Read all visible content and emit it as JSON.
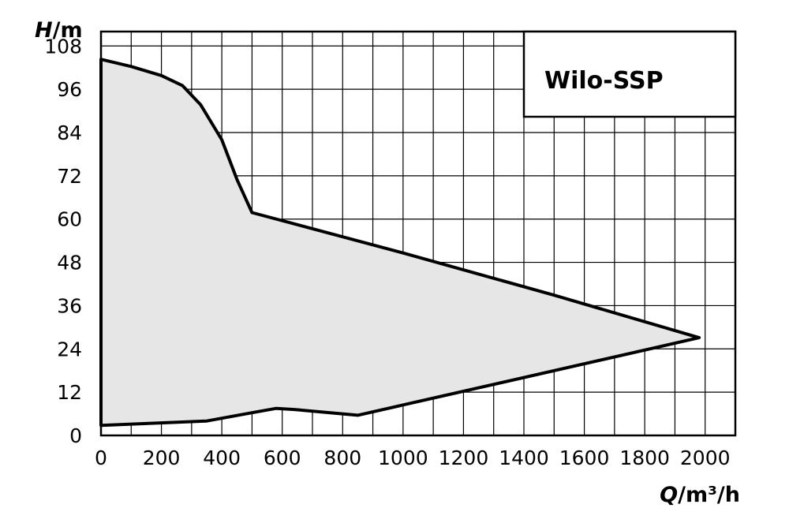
{
  "chart_data": {
    "type": "area",
    "title": "",
    "xlabel_var": "Q",
    "xlabel_unit": "/m³/h",
    "ylabel_var": "H",
    "ylabel_unit": "/m",
    "xlim": [
      0,
      2100
    ],
    "ylim": [
      0,
      112
    ],
    "x_ticks": [
      0,
      200,
      400,
      600,
      800,
      1000,
      1200,
      1400,
      1600,
      1800,
      2000
    ],
    "y_ticks": [
      0,
      12,
      24,
      36,
      48,
      60,
      72,
      84,
      96,
      108
    ],
    "x_tick_labels": [
      "0",
      "200",
      "400",
      "600",
      "800",
      "1000",
      "1200",
      "1400",
      "1600",
      "1800",
      "2000"
    ],
    "y_tick_labels": [
      "0",
      "12",
      "24",
      "36",
      "48",
      "60",
      "72",
      "84",
      "96",
      "108"
    ],
    "grid": true,
    "fill_color": "#e6e6e6",
    "line_color": "#000000",
    "legend_label": "Wilo-SSP",
    "legend_position": "top-right",
    "series": [
      {
        "name": "Wilo-SSP",
        "upper_boundary": {
          "x": [
            0,
            100,
            200,
            270,
            330,
            400,
            450,
            500,
            1000,
            1500,
            1980
          ],
          "y": [
            104.3,
            102.3,
            99.8,
            97.0,
            91.7,
            82.0,
            71.0,
            61.8,
            50.6,
            38.9,
            27.1
          ]
        },
        "lower_boundary": {
          "x": [
            0,
            350,
            500,
            580,
            640,
            850,
            1980
          ],
          "y": [
            2.8,
            4.0,
            6.3,
            7.5,
            7.2,
            5.6,
            27.1
          ]
        }
      }
    ]
  }
}
